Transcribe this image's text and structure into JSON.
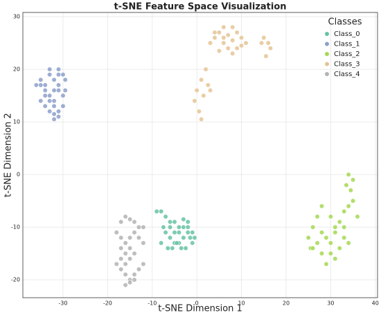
{
  "chart_data": {
    "type": "scatter",
    "title": "t-SNE Feature Space Visualization",
    "x_label": "t-SNE Dimension 1",
    "y_label": "t-SNE Dimension 2",
    "legend_title": "Classes",
    "legend": "upper right",
    "grid": true,
    "xlim": [
      -39,
      40.5
    ],
    "ylim": [
      -23.4,
      30.8
    ],
    "xticks": [
      -30,
      -20,
      -10,
      0,
      10,
      20,
      30,
      40
    ],
    "yticks": [
      -20,
      -10,
      0,
      10,
      20,
      30
    ],
    "series": [
      {
        "name": "Class_0",
        "color": "#66c2a5",
        "x": [
          -9,
          -8,
          -7,
          -6,
          -5,
          -4,
          -3,
          -2,
          -1,
          -0.5,
          -7,
          -6,
          -5,
          -4,
          -3,
          -2,
          -1,
          -6.5,
          -5.5,
          -4.5,
          -3.5,
          -2.5,
          -1.5,
          -8,
          -7.5,
          -6,
          -4,
          -2,
          -3,
          -5
        ],
        "y": [
          -7,
          -7,
          -8,
          -9,
          -9,
          -10,
          -10,
          -10,
          -11,
          -12,
          -11,
          -12,
          -13,
          -13,
          -12,
          -11,
          -13,
          -14,
          -14,
          -13,
          -14,
          -14,
          -12,
          -13,
          -10,
          -10,
          -11,
          -9,
          -8.5,
          -11
        ]
      },
      {
        "name": "Class_1",
        "color": "#8da0cb",
        "x": [
          -35,
          -33,
          -31,
          -30,
          -32,
          -34,
          -36,
          -33,
          -31,
          -29.5,
          -32,
          -34,
          -35,
          -30,
          -31,
          -33,
          -32,
          -34,
          -30,
          -31,
          -33,
          -32,
          -35,
          -31,
          -29.5,
          -33,
          -32,
          -34,
          -31,
          -32
        ],
        "y": [
          17,
          19,
          20,
          19,
          18,
          16,
          17,
          15,
          17,
          16,
          14,
          13,
          18,
          13,
          11,
          12,
          10.5,
          15,
          15,
          19,
          20,
          16,
          14,
          12,
          18,
          14,
          13,
          17,
          16,
          11.5
        ]
      },
      {
        "name": "Class_2",
        "color": "#a6d854",
        "x": [
          34,
          35,
          33.5,
          34.5,
          35,
          34,
          33,
          36,
          32,
          31,
          30,
          28,
          27,
          26,
          25,
          25.5,
          27,
          28,
          29,
          30,
          31,
          32,
          33,
          34,
          29,
          30,
          28,
          26,
          31,
          33
        ],
        "y": [
          0,
          -1,
          -2,
          -3,
          -5,
          -6,
          -7,
          -8,
          -9,
          -10,
          -8,
          -6,
          -8,
          -10,
          -12,
          -14,
          -13,
          -11,
          -12,
          -15,
          -16,
          -14,
          -12,
          -13,
          -17,
          -13,
          -15,
          -14,
          -11,
          -10
        ]
      },
      {
        "name": "Class_3",
        "color": "#e5c494",
        "x": [
          3,
          4,
          5,
          6,
          7,
          8,
          9,
          10,
          11,
          5,
          6,
          7,
          8,
          9,
          10,
          4,
          6,
          8,
          15,
          16,
          14.5,
          16.5,
          15.5,
          0,
          1,
          2,
          -0.5,
          1.5,
          2.5,
          3,
          0.5,
          1
        ],
        "y": [
          25,
          26,
          27,
          28,
          24,
          25.5,
          27,
          26,
          25,
          23.5,
          25,
          26.5,
          28,
          24,
          24.5,
          27,
          26,
          23,
          26,
          25,
          25,
          24,
          22.5,
          16,
          18,
          20,
          14,
          15,
          17,
          16,
          12,
          10.5
        ]
      },
      {
        "name": "Class_4",
        "color": "#b3b3b3",
        "x": [
          -17,
          -16,
          -15,
          -14,
          -13,
          -12,
          -18,
          -17,
          -16,
          -15,
          -14,
          -13,
          -12,
          -17,
          -16,
          -15,
          -14,
          -18,
          -17,
          -16,
          -15,
          -14,
          -13,
          -12,
          -16,
          -15,
          -14,
          -17,
          -16,
          -15
        ],
        "y": [
          -9,
          -8,
          -8.5,
          -9,
          -10,
          -10,
          -11,
          -12,
          -13,
          -12,
          -11,
          -12,
          -13,
          -14,
          -15,
          -16,
          -15,
          -17,
          -18,
          -19,
          -20,
          -19,
          -18,
          -17,
          -21,
          -20.5,
          -20,
          -16,
          -17,
          -14
        ]
      }
    ]
  }
}
